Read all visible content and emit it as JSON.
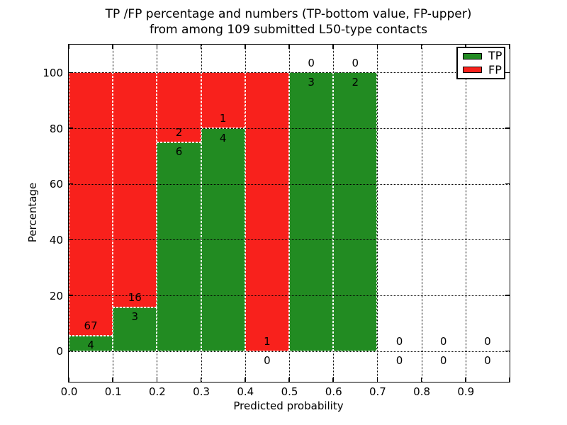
{
  "chart_data": {
    "type": "bar",
    "stacked": true,
    "title_line1": "TP /FP percentage and numbers (TP-bottom value, FP-upper)",
    "title_line2": "from among 109 submitted L50-type contacts",
    "xlabel": "Predicted probability",
    "ylabel": "Percentage",
    "total_submitted": 109,
    "xlim": [
      0.0,
      1.0
    ],
    "ylim": [
      -11,
      110
    ],
    "grid": true,
    "grid_style": "dotted",
    "bar_edge_style": "dashed-white",
    "annotation_offset_pct": 3.5,
    "colors": {
      "tp": "#228B22",
      "fp": "#F8211C",
      "grid": "#000000",
      "text": "#000000",
      "background": "#FFFFFF"
    },
    "legend": {
      "position": "upper-right",
      "entries": [
        {
          "label": "TP",
          "color": "#228B22"
        },
        {
          "label": "FP",
          "color": "#F8211C"
        }
      ]
    },
    "xticks": [
      {
        "v": 0.0,
        "label": "0.0"
      },
      {
        "v": 0.1,
        "label": "0.1"
      },
      {
        "v": 0.2,
        "label": "0.2"
      },
      {
        "v": 0.3,
        "label": "0.3"
      },
      {
        "v": 0.4,
        "label": "0.4"
      },
      {
        "v": 0.5,
        "label": "0.5"
      },
      {
        "v": 0.6,
        "label": "0.6"
      },
      {
        "v": 0.7,
        "label": "0.7"
      },
      {
        "v": 0.8,
        "label": "0.8"
      },
      {
        "v": 0.9,
        "label": "0.9"
      },
      {
        "v": 1.0,
        "label": ""
      }
    ],
    "yticks": [
      {
        "v": 0,
        "label": "0"
      },
      {
        "v": 20,
        "label": "20"
      },
      {
        "v": 40,
        "label": "40"
      },
      {
        "v": 60,
        "label": "60"
      },
      {
        "v": 80,
        "label": "80"
      },
      {
        "v": 100,
        "label": "100"
      }
    ],
    "bins": [
      {
        "range": [
          0.0,
          0.1
        ],
        "tp_count": 4,
        "fp_count": 67,
        "tp_pct": 5.63,
        "fp_pct": 94.37
      },
      {
        "range": [
          0.1,
          0.2
        ],
        "tp_count": 3,
        "fp_count": 16,
        "tp_pct": 15.79,
        "fp_pct": 84.21
      },
      {
        "range": [
          0.2,
          0.3
        ],
        "tp_count": 6,
        "fp_count": 2,
        "tp_pct": 75.0,
        "fp_pct": 25.0
      },
      {
        "range": [
          0.3,
          0.4
        ],
        "tp_count": 4,
        "fp_count": 1,
        "tp_pct": 80.0,
        "fp_pct": 20.0
      },
      {
        "range": [
          0.4,
          0.5
        ],
        "tp_count": 0,
        "fp_count": 1,
        "tp_pct": 0.0,
        "fp_pct": 100.0
      },
      {
        "range": [
          0.5,
          0.6
        ],
        "tp_count": 3,
        "fp_count": 0,
        "tp_pct": 100.0,
        "fp_pct": 0.0
      },
      {
        "range": [
          0.6,
          0.7
        ],
        "tp_count": 2,
        "fp_count": 0,
        "tp_pct": 100.0,
        "fp_pct": 0.0
      },
      {
        "range": [
          0.7,
          0.8
        ],
        "tp_count": 0,
        "fp_count": 0,
        "tp_pct": 0.0,
        "fp_pct": 0.0
      },
      {
        "range": [
          0.8,
          0.9
        ],
        "tp_count": 0,
        "fp_count": 0,
        "tp_pct": 0.0,
        "fp_pct": 0.0
      },
      {
        "range": [
          0.9,
          1.0
        ],
        "tp_count": 0,
        "fp_count": 0,
        "tp_pct": 0.0,
        "fp_pct": 0.0
      }
    ]
  }
}
